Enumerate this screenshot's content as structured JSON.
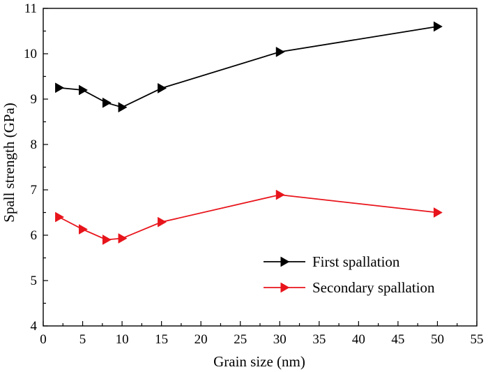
{
  "chart_data": {
    "type": "line",
    "title": "",
    "xlabel": "Grain size (nm)",
    "ylabel": "Spall strength (GPa)",
    "xlim": [
      0,
      55
    ],
    "ylim": [
      4,
      11
    ],
    "xticks": [
      "0",
      "5",
      "10",
      "15",
      "20",
      "25",
      "30",
      "35",
      "40",
      "45",
      "50",
      "55"
    ],
    "yticks": [
      "4",
      "5",
      "6",
      "7",
      "8",
      "9",
      "10",
      "11"
    ],
    "grid": false,
    "legend_position": "lower-right",
    "series": [
      {
        "name": "First spallation",
        "color": "#000000",
        "marker": "right-triangle",
        "x": [
          2,
          5,
          8,
          10,
          15,
          30,
          50
        ],
        "y": [
          9.25,
          9.2,
          8.92,
          8.82,
          9.24,
          10.04,
          10.6
        ]
      },
      {
        "name": "Secondary spallation",
        "color": "#e8141b",
        "marker": "right-triangle",
        "x": [
          2,
          5,
          8,
          10,
          15,
          30,
          50
        ],
        "y": [
          6.4,
          6.13,
          5.9,
          5.93,
          6.29,
          6.89,
          6.5
        ]
      }
    ]
  }
}
